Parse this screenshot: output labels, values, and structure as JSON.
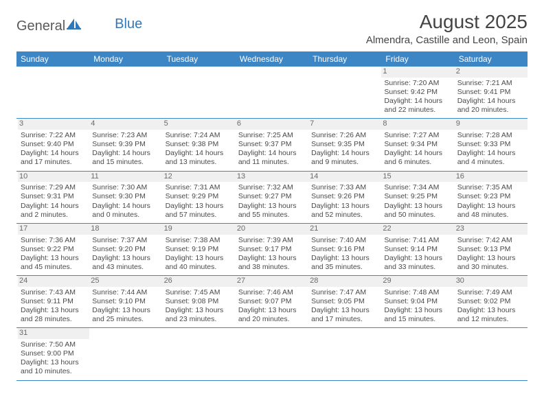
{
  "logo": {
    "part1": "General",
    "part2": "Blue"
  },
  "title": "August 2025",
  "location": "Almendra, Castille and Leon, Spain",
  "columns": [
    "Sunday",
    "Monday",
    "Tuesday",
    "Wednesday",
    "Thursday",
    "Friday",
    "Saturday"
  ],
  "colors": {
    "header_bg": "#3d86c6",
    "header_text": "#ffffff",
    "border": "#3d86c6",
    "logo_blue": "#2f78b9",
    "daynum_bg": "#f0f0f0",
    "text": "#4a4a4a"
  },
  "days": {
    "1": {
      "sunrise": "7:20 AM",
      "sunset": "9:42 PM",
      "daylight": "14 hours and 22 minutes."
    },
    "2": {
      "sunrise": "7:21 AM",
      "sunset": "9:41 PM",
      "daylight": "14 hours and 20 minutes."
    },
    "3": {
      "sunrise": "7:22 AM",
      "sunset": "9:40 PM",
      "daylight": "14 hours and 17 minutes."
    },
    "4": {
      "sunrise": "7:23 AM",
      "sunset": "9:39 PM",
      "daylight": "14 hours and 15 minutes."
    },
    "5": {
      "sunrise": "7:24 AM",
      "sunset": "9:38 PM",
      "daylight": "14 hours and 13 minutes."
    },
    "6": {
      "sunrise": "7:25 AM",
      "sunset": "9:37 PM",
      "daylight": "14 hours and 11 minutes."
    },
    "7": {
      "sunrise": "7:26 AM",
      "sunset": "9:35 PM",
      "daylight": "14 hours and 9 minutes."
    },
    "8": {
      "sunrise": "7:27 AM",
      "sunset": "9:34 PM",
      "daylight": "14 hours and 6 minutes."
    },
    "9": {
      "sunrise": "7:28 AM",
      "sunset": "9:33 PM",
      "daylight": "14 hours and 4 minutes."
    },
    "10": {
      "sunrise": "7:29 AM",
      "sunset": "9:31 PM",
      "daylight": "14 hours and 2 minutes."
    },
    "11": {
      "sunrise": "7:30 AM",
      "sunset": "9:30 PM",
      "daylight": "14 hours and 0 minutes."
    },
    "12": {
      "sunrise": "7:31 AM",
      "sunset": "9:29 PM",
      "daylight": "13 hours and 57 minutes."
    },
    "13": {
      "sunrise": "7:32 AM",
      "sunset": "9:27 PM",
      "daylight": "13 hours and 55 minutes."
    },
    "14": {
      "sunrise": "7:33 AM",
      "sunset": "9:26 PM",
      "daylight": "13 hours and 52 minutes."
    },
    "15": {
      "sunrise": "7:34 AM",
      "sunset": "9:25 PM",
      "daylight": "13 hours and 50 minutes."
    },
    "16": {
      "sunrise": "7:35 AM",
      "sunset": "9:23 PM",
      "daylight": "13 hours and 48 minutes."
    },
    "17": {
      "sunrise": "7:36 AM",
      "sunset": "9:22 PM",
      "daylight": "13 hours and 45 minutes."
    },
    "18": {
      "sunrise": "7:37 AM",
      "sunset": "9:20 PM",
      "daylight": "13 hours and 43 minutes."
    },
    "19": {
      "sunrise": "7:38 AM",
      "sunset": "9:19 PM",
      "daylight": "13 hours and 40 minutes."
    },
    "20": {
      "sunrise": "7:39 AM",
      "sunset": "9:17 PM",
      "daylight": "13 hours and 38 minutes."
    },
    "21": {
      "sunrise": "7:40 AM",
      "sunset": "9:16 PM",
      "daylight": "13 hours and 35 minutes."
    },
    "22": {
      "sunrise": "7:41 AM",
      "sunset": "9:14 PM",
      "daylight": "13 hours and 33 minutes."
    },
    "23": {
      "sunrise": "7:42 AM",
      "sunset": "9:13 PM",
      "daylight": "13 hours and 30 minutes."
    },
    "24": {
      "sunrise": "7:43 AM",
      "sunset": "9:11 PM",
      "daylight": "13 hours and 28 minutes."
    },
    "25": {
      "sunrise": "7:44 AM",
      "sunset": "9:10 PM",
      "daylight": "13 hours and 25 minutes."
    },
    "26": {
      "sunrise": "7:45 AM",
      "sunset": "9:08 PM",
      "daylight": "13 hours and 23 minutes."
    },
    "27": {
      "sunrise": "7:46 AM",
      "sunset": "9:07 PM",
      "daylight": "13 hours and 20 minutes."
    },
    "28": {
      "sunrise": "7:47 AM",
      "sunset": "9:05 PM",
      "daylight": "13 hours and 17 minutes."
    },
    "29": {
      "sunrise": "7:48 AM",
      "sunset": "9:04 PM",
      "daylight": "13 hours and 15 minutes."
    },
    "30": {
      "sunrise": "7:49 AM",
      "sunset": "9:02 PM",
      "daylight": "13 hours and 12 minutes."
    },
    "31": {
      "sunrise": "7:50 AM",
      "sunset": "9:00 PM",
      "daylight": "13 hours and 10 minutes."
    }
  },
  "grid": [
    [
      null,
      null,
      null,
      null,
      null,
      "1",
      "2"
    ],
    [
      "3",
      "4",
      "5",
      "6",
      "7",
      "8",
      "9"
    ],
    [
      "10",
      "11",
      "12",
      "13",
      "14",
      "15",
      "16"
    ],
    [
      "17",
      "18",
      "19",
      "20",
      "21",
      "22",
      "23"
    ],
    [
      "24",
      "25",
      "26",
      "27",
      "28",
      "29",
      "30"
    ],
    [
      "31",
      null,
      null,
      null,
      null,
      null,
      null
    ]
  ],
  "labels": {
    "sunrise": "Sunrise: ",
    "sunset": "Sunset: ",
    "daylight": "Daylight: "
  }
}
